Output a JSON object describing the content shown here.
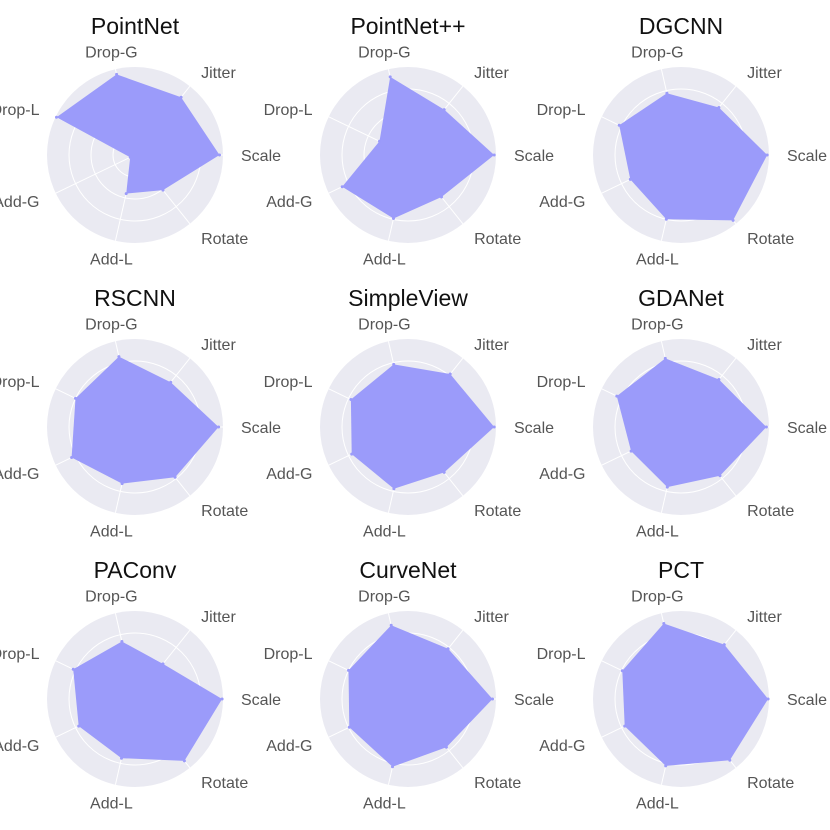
{
  "chart_data": [
    {
      "type": "radar",
      "title": "PointNet",
      "axes": [
        "Scale",
        "Jitter",
        "Drop-G",
        "Drop-L",
        "Add-G",
        "Add-L",
        "Rotate"
      ],
      "rlim": [
        0,
        1
      ],
      "grid": true,
      "values": [
        0.96,
        0.84,
        0.94,
        0.99,
        0.06,
        0.45,
        0.51
      ]
    },
    {
      "type": "radar",
      "title": "PointNet++",
      "axes": [
        "Scale",
        "Jitter",
        "Drop-G",
        "Drop-L",
        "Add-G",
        "Add-L",
        "Rotate"
      ],
      "rlim": [
        0,
        1
      ],
      "grid": true,
      "values": [
        0.98,
        0.66,
        0.91,
        0.36,
        0.83,
        0.74,
        0.61
      ]
    },
    {
      "type": "radar",
      "title": "DGCNN",
      "axes": [
        "Scale",
        "Jitter",
        "Drop-G",
        "Drop-L",
        "Add-G",
        "Add-L",
        "Rotate"
      ],
      "rlim": [
        0,
        1
      ],
      "grid": true,
      "values": [
        0.98,
        0.69,
        0.72,
        0.78,
        0.64,
        0.75,
        0.95
      ]
    },
    {
      "type": "radar",
      "title": "RSCNN",
      "axes": [
        "Scale",
        "Jitter",
        "Drop-G",
        "Drop-L",
        "Add-G",
        "Add-L",
        "Rotate"
      ],
      "rlim": [
        0,
        1
      ],
      "grid": true,
      "values": [
        0.95,
        0.65,
        0.82,
        0.75,
        0.8,
        0.66,
        0.73
      ]
    },
    {
      "type": "radar",
      "title": "SimpleView",
      "axes": [
        "Scale",
        "Jitter",
        "Drop-G",
        "Drop-L",
        "Add-G",
        "Add-L",
        "Rotate"
      ],
      "rlim": [
        0,
        1
      ],
      "grid": true,
      "values": [
        0.98,
        0.77,
        0.73,
        0.72,
        0.71,
        0.72,
        0.66
      ]
    },
    {
      "type": "radar",
      "title": "GDANet",
      "axes": [
        "Scale",
        "Jitter",
        "Drop-G",
        "Drop-L",
        "Add-G",
        "Add-L",
        "Rotate"
      ],
      "rlim": [
        0,
        1
      ],
      "grid": true,
      "values": [
        0.97,
        0.69,
        0.8,
        0.81,
        0.63,
        0.7,
        0.71
      ]
    },
    {
      "type": "radar",
      "title": "PAConv",
      "axes": [
        "Scale",
        "Jitter",
        "Drop-G",
        "Drop-L",
        "Add-G",
        "Add-L",
        "Rotate"
      ],
      "rlim": [
        0,
        1
      ],
      "grid": true,
      "values": [
        0.99,
        0.51,
        0.67,
        0.78,
        0.71,
        0.69,
        0.9
      ]
    },
    {
      "type": "radar",
      "title": "CurveNet",
      "axes": [
        "Scale",
        "Jitter",
        "Drop-G",
        "Drop-L",
        "Add-G",
        "Add-L",
        "Rotate"
      ],
      "rlim": [
        0,
        1
      ],
      "grid": true,
      "values": [
        0.96,
        0.73,
        0.86,
        0.75,
        0.74,
        0.79,
        0.7
      ]
    },
    {
      "type": "radar",
      "title": "PCT",
      "axes": [
        "Scale",
        "Jitter",
        "Drop-G",
        "Drop-L",
        "Add-G",
        "Add-L",
        "Rotate"
      ],
      "rlim": [
        0,
        1
      ],
      "grid": true,
      "values": [
        0.99,
        0.79,
        0.88,
        0.74,
        0.71,
        0.78,
        0.89
      ]
    }
  ],
  "colors": {
    "panel_background": "#eaeaf2",
    "gridline": "#ffffff",
    "fill": "#9b9bfa",
    "title_text": "#111111",
    "label_text": "#555555"
  }
}
